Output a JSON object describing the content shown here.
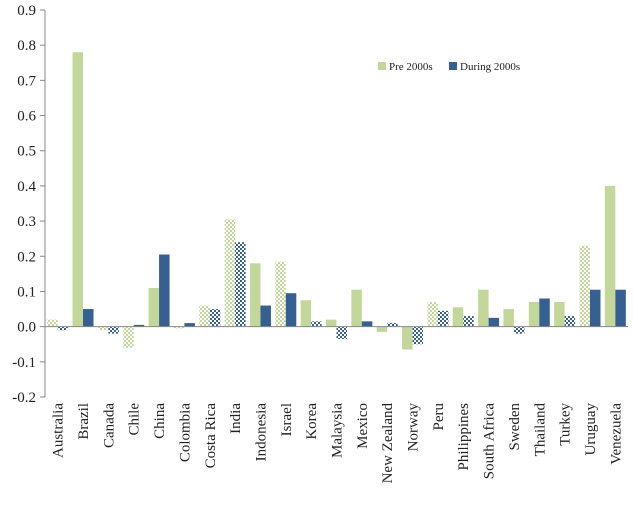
{
  "chart_data": {
    "type": "bar",
    "title": "",
    "xlabel": "",
    "ylabel": "",
    "ylim": [
      -0.2,
      0.9
    ],
    "yticks": [
      "-0.2",
      "-0.1",
      "0.0",
      "0.1",
      "0.2",
      "0.3",
      "0.4",
      "0.5",
      "0.6",
      "0.7",
      "0.8",
      "0.9"
    ],
    "grid": false,
    "legend_position": "top-right",
    "categories": [
      "Australia",
      "Brazil",
      "Canada",
      "Chile",
      "China",
      "Colombia",
      "Costa Rica",
      "India",
      "Indonesia",
      "Israel",
      "Korea",
      "Malaysia",
      "Mexico",
      "New Zealand",
      "Norway",
      "Peru",
      "Philippines",
      "South Africa",
      "Sweden",
      "Thailand",
      "Turkey",
      "Uruguay",
      "Venezuela"
    ],
    "series": [
      {
        "name": "Pre 2000s",
        "color": "#c4d79b",
        "values": [
          0.02,
          0.78,
          -0.01,
          -0.06,
          0.11,
          -0.005,
          0.06,
          0.305,
          0.18,
          0.185,
          0.075,
          0.02,
          0.105,
          -0.015,
          -0.065,
          0.07,
          0.055,
          0.105,
          0.05,
          0.07,
          0.07,
          0.23,
          0.4
        ],
        "hatched": [
          true,
          false,
          true,
          true,
          false,
          true,
          true,
          true,
          false,
          true,
          false,
          false,
          false,
          false,
          false,
          true,
          false,
          false,
          false,
          false,
          false,
          true,
          false
        ]
      },
      {
        "name": "During 2000s",
        "color": "#376092",
        "values": [
          -0.01,
          0.05,
          -0.02,
          0.005,
          0.205,
          0.01,
          0.05,
          0.24,
          0.06,
          0.095,
          0.015,
          -0.035,
          0.015,
          0.01,
          -0.05,
          0.045,
          0.03,
          0.025,
          -0.02,
          0.08,
          0.03,
          0.105,
          0.105
        ],
        "hatched": [
          true,
          false,
          true,
          false,
          false,
          false,
          true,
          true,
          false,
          false,
          true,
          true,
          false,
          true,
          true,
          true,
          true,
          false,
          true,
          false,
          true,
          false,
          false
        ]
      }
    ]
  }
}
